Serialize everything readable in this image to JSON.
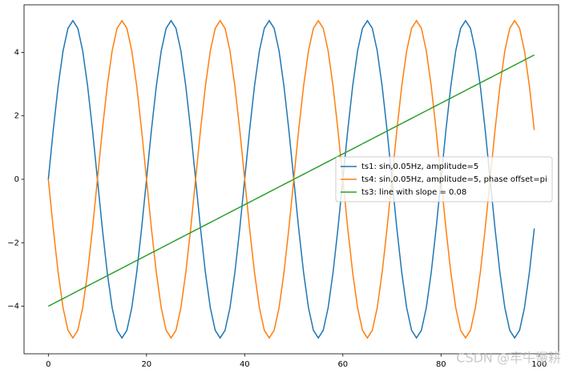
{
  "chart_data": {
    "type": "line",
    "x": [
      0,
      1,
      2,
      3,
      4,
      5,
      6,
      7,
      8,
      9,
      10,
      11,
      12,
      13,
      14,
      15,
      16,
      17,
      18,
      19,
      20,
      21,
      22,
      23,
      24,
      25,
      26,
      27,
      28,
      29,
      30,
      31,
      32,
      33,
      34,
      35,
      36,
      37,
      38,
      39,
      40,
      41,
      42,
      43,
      44,
      45,
      46,
      47,
      48,
      49,
      50,
      51,
      52,
      53,
      54,
      55,
      56,
      57,
      58,
      59,
      60,
      61,
      62,
      63,
      64,
      65,
      66,
      67,
      68,
      69,
      70,
      71,
      72,
      73,
      74,
      75,
      76,
      77,
      78,
      79,
      80,
      81,
      82,
      83,
      84,
      85,
      86,
      87,
      88,
      89,
      90,
      91,
      92,
      93,
      94,
      95,
      96,
      97,
      98,
      99
    ],
    "series": [
      {
        "name": "ts1: sin,0.05Hz, amplitude=5",
        "color": "#1f77b4",
        "values": [
          0,
          1.55,
          2.94,
          4.05,
          4.76,
          5,
          4.76,
          4.05,
          2.94,
          1.55,
          0,
          -1.55,
          -2.94,
          -4.05,
          -4.76,
          -5,
          -4.76,
          -4.05,
          -2.94,
          -1.55,
          0,
          1.55,
          2.94,
          4.05,
          4.76,
          5,
          4.76,
          4.05,
          2.94,
          1.55,
          0,
          -1.55,
          -2.94,
          -4.05,
          -4.76,
          -5,
          -4.76,
          -4.05,
          -2.94,
          -1.55,
          0,
          1.55,
          2.94,
          4.05,
          4.76,
          5,
          4.76,
          4.05,
          2.94,
          1.55,
          0,
          -1.55,
          -2.94,
          -4.05,
          -4.76,
          -5,
          -4.76,
          -4.05,
          -2.94,
          -1.55,
          0,
          1.55,
          2.94,
          4.05,
          4.76,
          5,
          4.76,
          4.05,
          2.94,
          1.55,
          0,
          -1.55,
          -2.94,
          -4.05,
          -4.76,
          -5,
          -4.76,
          -4.05,
          -2.94,
          -1.55,
          0,
          1.55,
          2.94,
          4.05,
          4.76,
          5,
          4.76,
          4.05,
          2.94,
          1.55,
          0,
          -1.55,
          -2.94,
          -4.05,
          -4.76,
          -5,
          -4.76,
          -4.05,
          -2.94,
          -1.55
        ]
      },
      {
        "name": "ts4: sin,0.05Hz, amplitude=5, phase offset=pi",
        "color": "#ff7f0e",
        "values": [
          0,
          -1.55,
          -2.94,
          -4.05,
          -4.76,
          -5,
          -4.76,
          -4.05,
          -2.94,
          -1.55,
          0,
          1.55,
          2.94,
          4.05,
          4.76,
          5,
          4.76,
          4.05,
          2.94,
          1.55,
          0,
          -1.55,
          -2.94,
          -4.05,
          -4.76,
          -5,
          -4.76,
          -4.05,
          -2.94,
          -1.55,
          0,
          1.55,
          2.94,
          4.05,
          4.76,
          5,
          4.76,
          4.05,
          2.94,
          1.55,
          0,
          -1.55,
          -2.94,
          -4.05,
          -4.76,
          -5,
          -4.76,
          -4.05,
          -2.94,
          -1.55,
          0,
          1.55,
          2.94,
          4.05,
          4.76,
          5,
          4.76,
          4.05,
          2.94,
          1.55,
          0,
          -1.55,
          -2.94,
          -4.05,
          -4.76,
          -5,
          -4.76,
          -4.05,
          -2.94,
          -1.55,
          0,
          1.55,
          2.94,
          4.05,
          4.76,
          5,
          4.76,
          4.05,
          2.94,
          1.55,
          0,
          -1.55,
          -2.94,
          -4.05,
          -4.76,
          -5,
          -4.76,
          -4.05,
          -2.94,
          -1.55,
          0,
          1.55,
          2.94,
          4.05,
          4.76,
          5,
          4.76,
          4.05,
          2.94,
          1.55
        ]
      },
      {
        "name": "ts3: line with slope = 0.08",
        "color": "#2ca02c",
        "values": [
          -4,
          -3.92,
          -3.84,
          -3.76,
          -3.68,
          -3.6,
          -3.52,
          -3.44,
          -3.36,
          -3.28,
          -3.2,
          -3.12,
          -3.04,
          -2.96,
          -2.88,
          -2.8,
          -2.72,
          -2.64,
          -2.56,
          -2.48,
          -2.4,
          -2.32,
          -2.24,
          -2.16,
          -2.08,
          -2,
          -1.92,
          -1.84,
          -1.76,
          -1.68,
          -1.6,
          -1.52,
          -1.44,
          -1.36,
          -1.28,
          -1.2,
          -1.12,
          -1.04,
          -0.96,
          -0.88,
          -0.8,
          -0.72,
          -0.64,
          -0.56,
          -0.48,
          -0.4,
          -0.32,
          -0.24,
          -0.16,
          -0.08,
          0,
          0.08,
          0.16,
          0.24,
          0.32,
          0.4,
          0.48,
          0.56,
          0.64,
          0.72,
          0.8,
          0.88,
          0.96,
          1.04,
          1.12,
          1.2,
          1.28,
          1.36,
          1.44,
          1.52,
          1.6,
          1.68,
          1.76,
          1.84,
          1.92,
          2,
          2.08,
          2.16,
          2.24,
          2.32,
          2.4,
          2.48,
          2.56,
          2.64,
          2.72,
          2.8,
          2.88,
          2.96,
          3.04,
          3.12,
          3.2,
          3.28,
          3.36,
          3.44,
          3.52,
          3.6,
          3.68,
          3.76,
          3.84,
          3.92
        ]
      }
    ],
    "xlim": [
      -4.95,
      103.95
    ],
    "xticks": [
      0,
      20,
      40,
      60,
      80,
      100
    ],
    "ylim": [
      -5.5,
      5.5
    ],
    "yticks": [
      {
        "value": -4,
        "label": "−4"
      },
      {
        "value": -2,
        "label": "−2"
      },
      0,
      2,
      4
    ],
    "grid": false,
    "legend": "center right",
    "watermark": "CSDN @牢牛慢耕"
  }
}
